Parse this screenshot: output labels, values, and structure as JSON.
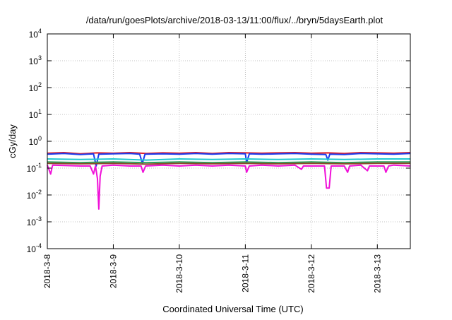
{
  "chart_data": {
    "type": "line",
    "title": "/data/run/goesPlots/archive/2018-03-13/11:00/flux/../bryn/5daysEarth.plot",
    "xlabel": "Coordinated Universal Time (UTC)",
    "ylabel": "cGy/day",
    "yscale": "log",
    "ylim": [
      0.0001,
      10000
    ],
    "xlim": [
      0,
      5.5
    ],
    "grid": true,
    "x_ticks": [
      {
        "label": "2018-3-8",
        "value": 0
      },
      {
        "label": "2018-3-9",
        "value": 1
      },
      {
        "label": "2018-3-10",
        "value": 2
      },
      {
        "label": "2018-3-11",
        "value": 3
      },
      {
        "label": "2018-3-12",
        "value": 4
      },
      {
        "label": "2018-3-13",
        "value": 5
      }
    ],
    "y_ticks": [
      {
        "base": "10",
        "exp": "-4",
        "value": 0.0001
      },
      {
        "base": "10",
        "exp": "-3",
        "value": 0.001
      },
      {
        "base": "10",
        "exp": "-2",
        "value": 0.01
      },
      {
        "base": "10",
        "exp": "-1",
        "value": 0.1
      },
      {
        "base": "10",
        "exp": "0",
        "value": 1
      },
      {
        "base": "10",
        "exp": "1",
        "value": 10
      },
      {
        "base": "10",
        "exp": "2",
        "value": 100
      },
      {
        "base": "10",
        "exp": "3",
        "value": 1000
      },
      {
        "base": "10",
        "exp": "4",
        "value": 10000
      }
    ],
    "series": [
      {
        "color": "#e0202a",
        "values": [
          [
            0,
            0.36
          ],
          [
            0.25,
            0.38
          ],
          [
            0.5,
            0.34
          ],
          [
            0.75,
            0.37
          ],
          [
            1,
            0.36
          ],
          [
            1.25,
            0.38
          ],
          [
            1.5,
            0.35
          ],
          [
            1.75,
            0.37
          ],
          [
            2,
            0.36
          ],
          [
            2.25,
            0.38
          ],
          [
            2.5,
            0.35
          ],
          [
            2.75,
            0.38
          ],
          [
            3,
            0.37
          ],
          [
            3.25,
            0.36
          ],
          [
            3.5,
            0.37
          ],
          [
            3.75,
            0.38
          ],
          [
            4,
            0.36
          ],
          [
            4.25,
            0.37
          ],
          [
            4.5,
            0.35
          ],
          [
            4.75,
            0.38
          ],
          [
            5,
            0.37
          ],
          [
            5.25,
            0.36
          ],
          [
            5.5,
            0.38
          ]
        ]
      },
      {
        "color": "#1a3cf0",
        "values": [
          [
            0,
            0.33
          ],
          [
            0.25,
            0.35
          ],
          [
            0.5,
            0.32
          ],
          [
            0.7,
            0.34
          ],
          [
            0.74,
            0.12
          ],
          [
            0.78,
            0.33
          ],
          [
            1,
            0.34
          ],
          [
            1.25,
            0.35
          ],
          [
            1.4,
            0.33
          ],
          [
            1.44,
            0.15
          ],
          [
            1.48,
            0.33
          ],
          [
            1.75,
            0.34
          ],
          [
            2,
            0.33
          ],
          [
            2.25,
            0.35
          ],
          [
            2.5,
            0.33
          ],
          [
            2.75,
            0.35
          ],
          [
            3,
            0.34
          ],
          [
            3.02,
            0.16
          ],
          [
            3.06,
            0.34
          ],
          [
            3.25,
            0.33
          ],
          [
            3.5,
            0.34
          ],
          [
            3.75,
            0.35
          ],
          [
            4,
            0.33
          ],
          [
            4.22,
            0.32
          ],
          [
            4.25,
            0.2
          ],
          [
            4.28,
            0.33
          ],
          [
            4.5,
            0.32
          ],
          [
            4.75,
            0.35
          ],
          [
            5,
            0.34
          ],
          [
            5.25,
            0.33
          ],
          [
            5.5,
            0.35
          ]
        ]
      },
      {
        "color": "#20c8d0",
        "values": [
          [
            0,
            0.22
          ],
          [
            0.5,
            0.21
          ],
          [
            1,
            0.22
          ],
          [
            1.5,
            0.2
          ],
          [
            2,
            0.22
          ],
          [
            2.5,
            0.21
          ],
          [
            3,
            0.22
          ],
          [
            3.5,
            0.21
          ],
          [
            4,
            0.22
          ],
          [
            4.5,
            0.21
          ],
          [
            5,
            0.22
          ],
          [
            5.5,
            0.22
          ]
        ]
      },
      {
        "color": "#2aa05a",
        "values": [
          [
            0,
            0.17
          ],
          [
            0.5,
            0.16
          ],
          [
            1,
            0.17
          ],
          [
            1.5,
            0.16
          ],
          [
            2,
            0.17
          ],
          [
            2.5,
            0.16
          ],
          [
            3,
            0.17
          ],
          [
            3.5,
            0.16
          ],
          [
            4,
            0.17
          ],
          [
            4.5,
            0.16
          ],
          [
            5,
            0.17
          ],
          [
            5.5,
            0.17
          ]
        ]
      },
      {
        "color": "#8a4a2a",
        "values": [
          [
            0,
            0.15
          ],
          [
            0.5,
            0.145
          ],
          [
            1,
            0.15
          ],
          [
            1.5,
            0.14
          ],
          [
            2,
            0.15
          ],
          [
            2.5,
            0.145
          ],
          [
            3,
            0.15
          ],
          [
            3.5,
            0.145
          ],
          [
            4,
            0.15
          ],
          [
            4.5,
            0.145
          ],
          [
            5,
            0.15
          ],
          [
            5.5,
            0.15
          ]
        ]
      },
      {
        "color": "#f010d8",
        "values": [
          [
            0,
            0.13
          ],
          [
            0.05,
            0.06
          ],
          [
            0.08,
            0.13
          ],
          [
            0.5,
            0.12
          ],
          [
            0.65,
            0.12
          ],
          [
            0.7,
            0.06
          ],
          [
            0.73,
            0.12
          ],
          [
            0.76,
            0.04
          ],
          [
            0.78,
            0.003
          ],
          [
            0.8,
            0.05
          ],
          [
            0.83,
            0.12
          ],
          [
            1,
            0.13
          ],
          [
            1.25,
            0.12
          ],
          [
            1.42,
            0.12
          ],
          [
            1.45,
            0.07
          ],
          [
            1.49,
            0.12
          ],
          [
            1.75,
            0.13
          ],
          [
            2,
            0.12
          ],
          [
            2.25,
            0.13
          ],
          [
            2.5,
            0.12
          ],
          [
            2.75,
            0.13
          ],
          [
            3,
            0.12
          ],
          [
            3.02,
            0.07
          ],
          [
            3.06,
            0.12
          ],
          [
            3.25,
            0.13
          ],
          [
            3.5,
            0.12
          ],
          [
            3.75,
            0.13
          ],
          [
            3.85,
            0.09
          ],
          [
            3.88,
            0.12
          ],
          [
            4,
            0.12
          ],
          [
            4.2,
            0.12
          ],
          [
            4.23,
            0.018
          ],
          [
            4.27,
            0.018
          ],
          [
            4.3,
            0.12
          ],
          [
            4.5,
            0.12
          ],
          [
            4.55,
            0.07
          ],
          [
            4.58,
            0.12
          ],
          [
            4.75,
            0.13
          ],
          [
            4.85,
            0.08
          ],
          [
            4.88,
            0.12
          ],
          [
            5,
            0.12
          ],
          [
            5.1,
            0.12
          ],
          [
            5.13,
            0.07
          ],
          [
            5.17,
            0.12
          ],
          [
            5.25,
            0.13
          ],
          [
            5.5,
            0.12
          ]
        ]
      }
    ]
  }
}
